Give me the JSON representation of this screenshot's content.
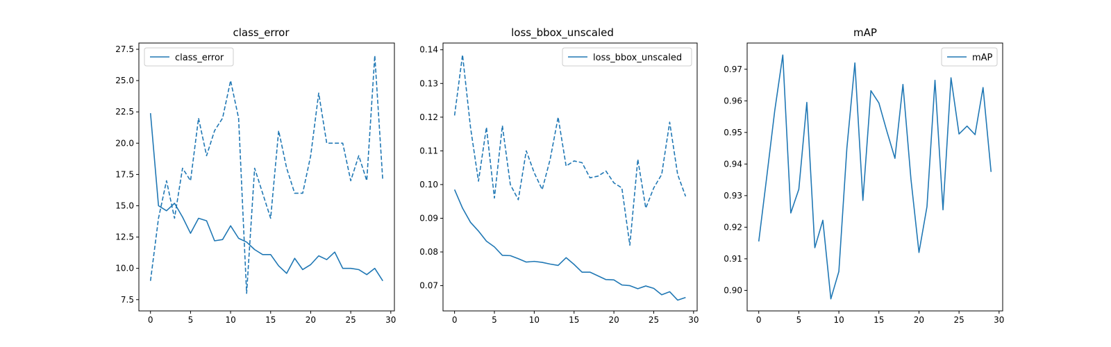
{
  "figure": {
    "background": "#ffffff"
  },
  "chart_data": [
    {
      "type": "line",
      "title": "class_error",
      "xlabel": "",
      "ylabel": "",
      "xlim": [
        -1.45,
        30.45
      ],
      "ylim": [
        6.6,
        28.0
      ],
      "xticks": [
        0,
        5,
        10,
        15,
        20,
        25,
        30
      ],
      "xtick_labels": [
        "0",
        "5",
        "10",
        "15",
        "20",
        "25",
        "30"
      ],
      "yticks": [
        7.5,
        10.0,
        12.5,
        15.0,
        17.5,
        20.0,
        22.5,
        25.0,
        27.5
      ],
      "ytick_labels": [
        "7.5",
        "10.0",
        "12.5",
        "15.0",
        "17.5",
        "20.0",
        "22.5",
        "25.0",
        "27.5"
      ],
      "grid": false,
      "legend": {
        "position": "top-left",
        "entries": [
          "class_error"
        ]
      },
      "x": [
        0,
        1,
        2,
        3,
        4,
        5,
        6,
        7,
        8,
        9,
        10,
        11,
        12,
        13,
        14,
        15,
        16,
        17,
        18,
        19,
        20,
        21,
        22,
        23,
        24,
        25,
        26,
        27,
        28,
        29
      ],
      "series": [
        {
          "name": "class_error",
          "style": "solid",
          "color": "#1f77b4",
          "values": [
            22.4,
            15.0,
            14.6,
            15.2,
            14.1,
            12.8,
            14.0,
            13.8,
            12.2,
            12.3,
            13.4,
            12.4,
            12.1,
            11.5,
            11.1,
            11.1,
            10.2,
            9.6,
            10.8,
            9.9,
            10.3,
            11.0,
            10.7,
            11.3,
            10.0,
            10.0,
            9.9,
            9.5,
            10.0,
            9.0
          ]
        },
        {
          "style": "dashed",
          "color": "#1f77b4",
          "values": [
            9.0,
            14.0,
            17.0,
            14.0,
            18.0,
            17.0,
            22.0,
            19.0,
            21.0,
            22.0,
            25.0,
            22.0,
            8.0,
            18.0,
            16.0,
            14.0,
            21.0,
            18.0,
            16.0,
            16.0,
            19.0,
            24.0,
            20.0,
            20.0,
            20.0,
            17.0,
            19.0,
            17.0,
            27.0,
            17.0
          ]
        }
      ]
    },
    {
      "type": "line",
      "title": "loss_bbox_unscaled",
      "xlabel": "",
      "ylabel": "",
      "xlim": [
        -1.45,
        30.45
      ],
      "ylim": [
        0.0625,
        0.142
      ],
      "xticks": [
        0,
        5,
        10,
        15,
        20,
        25,
        30
      ],
      "xtick_labels": [
        "0",
        "5",
        "10",
        "15",
        "20",
        "25",
        "30"
      ],
      "yticks": [
        0.07,
        0.08,
        0.09,
        0.1,
        0.11,
        0.12,
        0.13,
        0.14
      ],
      "ytick_labels": [
        "0.07",
        "0.08",
        "0.09",
        "0.10",
        "0.11",
        "0.12",
        "0.13",
        "0.14"
      ],
      "grid": false,
      "legend": {
        "position": "top-right",
        "entries": [
          "loss_bbox_unscaled"
        ]
      },
      "x": [
        0,
        1,
        2,
        3,
        4,
        5,
        6,
        7,
        8,
        9,
        10,
        11,
        12,
        13,
        14,
        15,
        16,
        17,
        18,
        19,
        20,
        21,
        22,
        23,
        24,
        25,
        26,
        27,
        28,
        29
      ],
      "series": [
        {
          "name": "loss_bbox_unscaled",
          "style": "solid",
          "color": "#1f77b4",
          "values": [
            0.0985,
            0.093,
            0.0888,
            0.0862,
            0.0832,
            0.0815,
            0.079,
            0.0789,
            0.078,
            0.077,
            0.0772,
            0.0769,
            0.0764,
            0.076,
            0.0783,
            0.0763,
            0.074,
            0.074,
            0.0729,
            0.0718,
            0.0717,
            0.0702,
            0.07,
            0.0691,
            0.0699,
            0.0692,
            0.0673,
            0.0682,
            0.0657,
            0.0665
          ]
        },
        {
          "style": "dashed",
          "color": "#1f77b4",
          "values": [
            0.1205,
            0.1385,
            0.117,
            0.101,
            0.117,
            0.096,
            0.1175,
            0.1,
            0.0955,
            0.11,
            0.1035,
            0.0985,
            0.1075,
            0.12,
            0.1055,
            0.107,
            0.1065,
            0.102,
            0.1025,
            0.104,
            0.1005,
            0.099,
            0.082,
            0.1075,
            0.093,
            0.099,
            0.103,
            0.1185,
            0.103,
            0.0965
          ]
        }
      ]
    },
    {
      "type": "line",
      "title": "mAP",
      "xlabel": "",
      "ylabel": "",
      "xlim": [
        -1.45,
        30.45
      ],
      "ylim": [
        0.8935,
        0.9783
      ],
      "xticks": [
        0,
        5,
        10,
        15,
        20,
        25,
        30
      ],
      "xtick_labels": [
        "0",
        "5",
        "10",
        "15",
        "20",
        "25",
        "30"
      ],
      "yticks": [
        0.9,
        0.91,
        0.92,
        0.93,
        0.94,
        0.95,
        0.96,
        0.97
      ],
      "ytick_labels": [
        "0.90",
        "0.91",
        "0.92",
        "0.93",
        "0.94",
        "0.95",
        "0.96",
        "0.97"
      ],
      "grid": false,
      "legend": {
        "position": "top-right",
        "entries": [
          "mAP"
        ]
      },
      "x": [
        0,
        1,
        2,
        3,
        4,
        5,
        6,
        7,
        8,
        9,
        10,
        11,
        12,
        13,
        14,
        15,
        16,
        17,
        18,
        19,
        20,
        21,
        22,
        23,
        24,
        25,
        26,
        27,
        28,
        29
      ],
      "series": [
        {
          "name": "mAP",
          "style": "solid",
          "color": "#1f77b4",
          "values": [
            0.9155,
            0.936,
            0.957,
            0.9745,
            0.9245,
            0.932,
            0.9595,
            0.9135,
            0.9222,
            0.8973,
            0.906,
            0.945,
            0.972,
            0.9285,
            0.9632,
            0.9593,
            0.9503,
            0.9418,
            0.9652,
            0.9352,
            0.912,
            0.9265,
            0.9665,
            0.9255,
            0.9673,
            0.9495,
            0.952,
            0.9493,
            0.9642,
            0.9375
          ]
        }
      ]
    }
  ]
}
